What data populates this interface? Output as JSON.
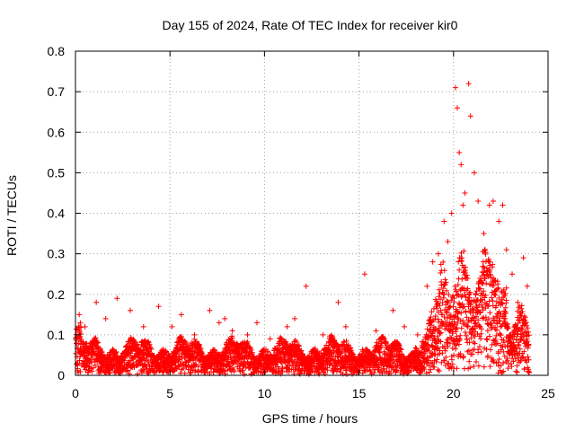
{
  "chart_data": {
    "type": "scatter",
    "title": "Day 155 of 2024, Rate Of TEC Index for receiver kir0",
    "xlabel": "GPS time / hours",
    "ylabel": "ROTI / TECUs",
    "xlim": [
      0,
      25
    ],
    "ylim": [
      0,
      0.8
    ],
    "x_ticks": [
      "0",
      "5",
      "10",
      "15",
      "20",
      "25"
    ],
    "y_ticks": [
      "0",
      "0.1",
      "0.2",
      "0.3",
      "0.4",
      "0.5",
      "0.6",
      "0.7",
      "0.8"
    ],
    "grid": true,
    "marker": "+",
    "color": "#ff0000",
    "series": [
      {
        "x": [
          0.2,
          0.5,
          0.9,
          1.1,
          1.6,
          2.2,
          2.9,
          3.6,
          4.4,
          5.1,
          5.6,
          6.3,
          7.1,
          7.6,
          7.9,
          8.3,
          9.1,
          9.6,
          10.3,
          11.2,
          11.6,
          12.2,
          13.1,
          13.9,
          14.3,
          15.3,
          15.9,
          16.8,
          17.4,
          18.1,
          18.6,
          18.9,
          19.2,
          19.5,
          19.7,
          19.9,
          20.1,
          20.2,
          20.3,
          20.4,
          20.5,
          20.6,
          20.8,
          20.9,
          21.1,
          21.3,
          21.6,
          21.9,
          22.1,
          22.4,
          22.6,
          22.8,
          23.1,
          23.4,
          23.7,
          23.9
        ],
        "y": [
          0.15,
          0.12,
          0.08,
          0.18,
          0.14,
          0.19,
          0.16,
          0.12,
          0.17,
          0.12,
          0.15,
          0.1,
          0.16,
          0.13,
          0.14,
          0.11,
          0.1,
          0.13,
          0.09,
          0.12,
          0.14,
          0.22,
          0.1,
          0.18,
          0.12,
          0.25,
          0.11,
          0.16,
          0.12,
          0.1,
          0.22,
          0.28,
          0.3,
          0.38,
          0.33,
          0.4,
          0.71,
          0.66,
          0.55,
          0.52,
          0.42,
          0.45,
          0.72,
          0.64,
          0.5,
          0.43,
          0.35,
          0.42,
          0.43,
          0.38,
          0.42,
          0.31,
          0.25,
          0.18,
          0.29,
          0.22
        ]
      }
    ]
  }
}
